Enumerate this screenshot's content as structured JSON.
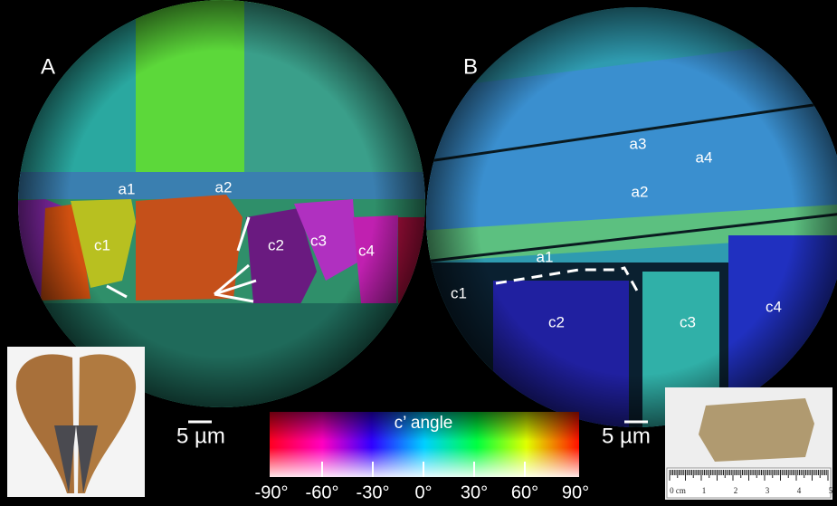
{
  "panel_a": {
    "label": "A",
    "labels": [
      "a1",
      "a2",
      "c1",
      "c2",
      "c3",
      "c4"
    ],
    "scale_bar": "5 µm"
  },
  "panel_b": {
    "label": "B",
    "labels": [
      "a1",
      "a2",
      "a3",
      "a4",
      "c1",
      "c2",
      "c3",
      "c4"
    ],
    "scale_bar": "5 µm"
  },
  "colorbar": {
    "title": "c’ angle",
    "ticks": [
      "-90°",
      "-60°",
      "-30°",
      "0°",
      "30°",
      "60°",
      "90°"
    ]
  },
  "ruler": {
    "labels": [
      "0 cm",
      "1",
      "2",
      "3",
      "4",
      "5"
    ]
  }
}
